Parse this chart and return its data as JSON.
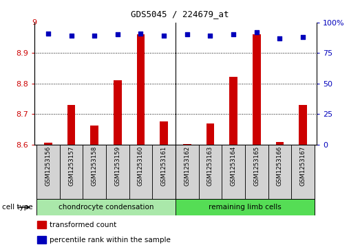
{
  "title": "GDS5045 / 224679_at",
  "samples": [
    "GSM1253156",
    "GSM1253157",
    "GSM1253158",
    "GSM1253159",
    "GSM1253160",
    "GSM1253161",
    "GSM1253162",
    "GSM1253163",
    "GSM1253164",
    "GSM1253165",
    "GSM1253166",
    "GSM1253167"
  ],
  "bar_values": [
    8.605,
    8.73,
    8.663,
    8.81,
    8.96,
    8.675,
    8.602,
    8.668,
    8.822,
    8.96,
    8.608,
    8.73
  ],
  "percentile_values": [
    91,
    89,
    89,
    90,
    91,
    89,
    90,
    89,
    90,
    92,
    87,
    88
  ],
  "ylim_left": [
    8.6,
    9.0
  ],
  "ylim_right": [
    0,
    100
  ],
  "yticks_left": [
    8.6,
    8.7,
    8.8,
    8.9
  ],
  "yticks_right": [
    0,
    25,
    50,
    75,
    100
  ],
  "bar_color": "#cc0000",
  "dot_color": "#0000bb",
  "grid_color": "#000000",
  "group1_label": "chondrocyte condensation",
  "group2_label": "remaining limb cells",
  "group1_color": "#aae8aa",
  "group2_color": "#55dd55",
  "cell_type_label": "cell type",
  "legend_bar_label": "transformed count",
  "legend_dot_label": "percentile rank within the sample",
  "bar_color_legend": "#cc0000",
  "dot_color_legend": "#0000bb",
  "sample_box_color": "#d3d3d3",
  "base_value": 8.6,
  "top_tick_label": "9",
  "title_fontsize": 9
}
